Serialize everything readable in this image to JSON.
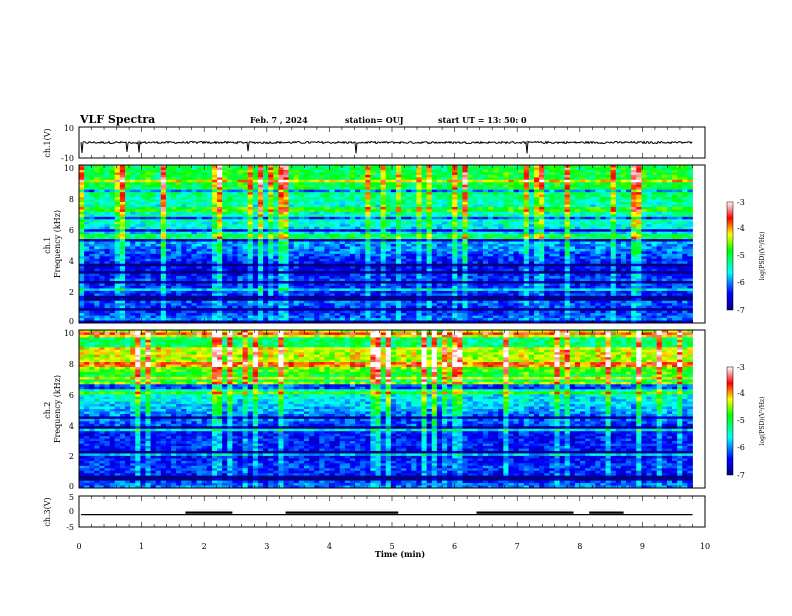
{
  "header": {
    "title": "VLF Spectra",
    "date": "Feb. 7 , 2024",
    "station": "station= OUJ",
    "start": "start UT =  13: 50: 0"
  },
  "chart_data": [
    {
      "type": "line",
      "panel": "ch1-waveform",
      "ylabel": "ch.1(V)",
      "ylim": [
        -10,
        10
      ],
      "yticks": [
        "10",
        "-10"
      ],
      "level": 0,
      "xlim": [
        0,
        10
      ]
    },
    {
      "type": "heatmap",
      "panel": "ch1-spectrogram",
      "ylabel": "ch.1\nFrequency (kHz)",
      "ylim": [
        0,
        10
      ],
      "yticks": [
        "0",
        "2",
        "4",
        "6",
        "8",
        "10"
      ],
      "xlim": [
        0,
        9.8
      ],
      "colorbar": {
        "label": "log(PSD)(V²/Hz)",
        "range": [
          -7,
          -3
        ],
        "ticks": [
          "-3",
          "-4",
          "-5",
          "-6",
          "-7"
        ]
      },
      "profile": [
        -5.9,
        -6.3,
        -6.1,
        -6.4,
        -6.2,
        -6.5,
        -6.3,
        -6.0,
        -5.8,
        -5.6,
        -5.3,
        -5.5,
        -5.2,
        -5.0,
        -4.9,
        -5.0
      ]
    },
    {
      "type": "heatmap",
      "panel": "ch2-spectrogram",
      "ylabel": "ch.2\nFrequency (kHz)",
      "ylim": [
        0,
        10
      ],
      "yticks": [
        "0",
        "2",
        "4",
        "6",
        "8",
        "10"
      ],
      "xlim": [
        0,
        9.8
      ],
      "colorbar": {
        "label": "log(PSD)(V²/Hz)",
        "range": [
          -7,
          -3
        ],
        "ticks": [
          "-3",
          "-4",
          "-5",
          "-6",
          "-7"
        ]
      },
      "profile": [
        -6.0,
        -6.4,
        -6.2,
        -6.5,
        -6.3,
        -6.4,
        -6.2,
        -6.0,
        -5.7,
        -5.5,
        -5.2,
        -4.8,
        -4.4,
        -4.3,
        -4.2,
        -4.3
      ]
    },
    {
      "type": "line",
      "panel": "ch3-waveform",
      "ylabel": "ch.3(V)",
      "ylim": [
        -5,
        5
      ],
      "yticks": [
        "5",
        "0",
        "-5"
      ],
      "level": -1,
      "segments": [
        [
          1.7,
          2.45
        ],
        [
          3.3,
          5.1
        ],
        [
          6.35,
          7.9
        ],
        [
          8.15,
          8.7
        ]
      ],
      "xlim": [
        0,
        10
      ]
    }
  ],
  "xaxis": {
    "label": "Time (min)",
    "ticks": [
      "0",
      "1",
      "2",
      "3",
      "4",
      "5",
      "6",
      "7",
      "8",
      "9",
      "10"
    ]
  },
  "colors": {
    "waveform": "#000000"
  }
}
